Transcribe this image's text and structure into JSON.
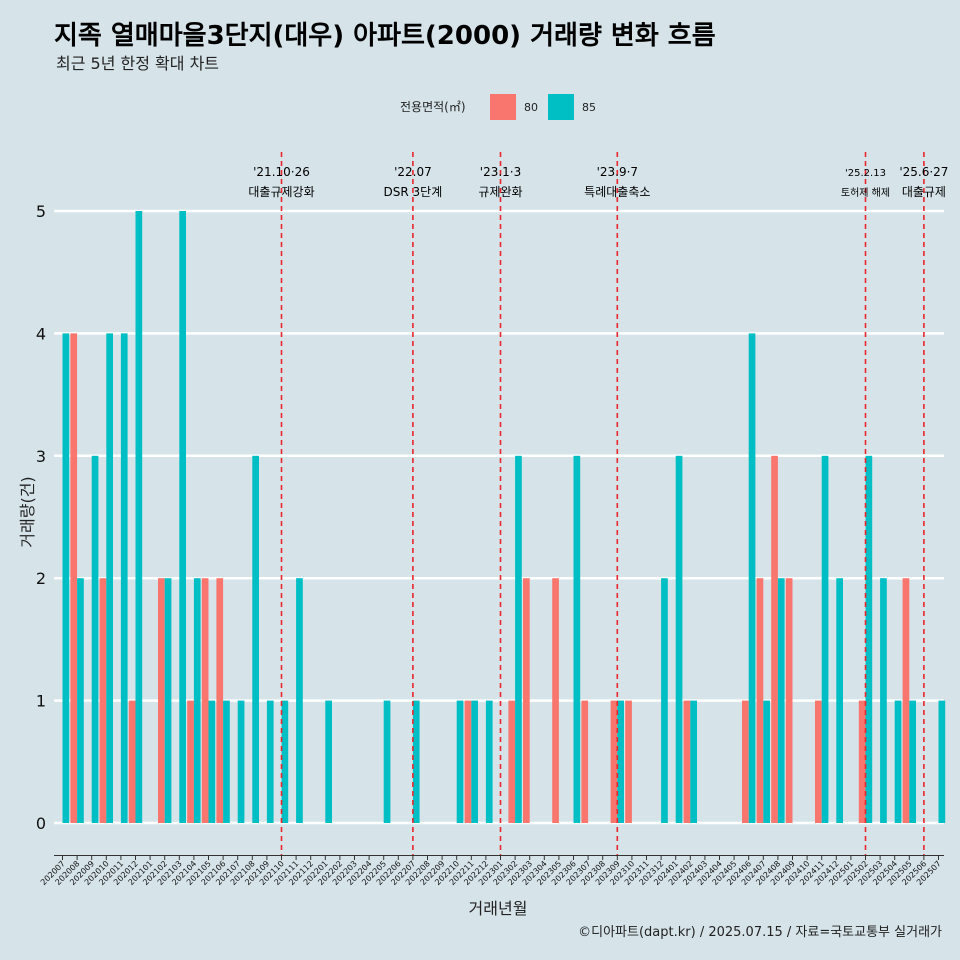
{
  "chart_data": {
    "type": "bar",
    "title": "지족 열매마을3단지(대우) 아파트(2000) 거래량 변화 흐름",
    "subtitle": "최근 5년 한정 확대 차트",
    "xlabel": "거래년월",
    "ylabel": "거래량(건)",
    "ylim": [
      0,
      5
    ],
    "yticks": [
      0,
      1,
      2,
      3,
      4,
      5
    ],
    "legend": {
      "title": "전용면적(㎡)",
      "position": "top",
      "entries": [
        {
          "name": "80",
          "color": "#f8766d"
        },
        {
          "name": "85",
          "color": "#00bfc4"
        }
      ]
    },
    "categories": [
      "202007",
      "202008",
      "202009",
      "202010",
      "202011",
      "202012",
      "202101",
      "202102",
      "202103",
      "202104",
      "202105",
      "202106",
      "202107",
      "202108",
      "202109",
      "202110",
      "202111",
      "202112",
      "202201",
      "202202",
      "202203",
      "202204",
      "202205",
      "202206",
      "202207",
      "202208",
      "202209",
      "202210",
      "202211",
      "202212",
      "202301",
      "202302",
      "202303",
      "202304",
      "202305",
      "202306",
      "202307",
      "202308",
      "202309",
      "202310",
      "202311",
      "202312",
      "202401",
      "202402",
      "202403",
      "202404",
      "202405",
      "202406",
      "202407",
      "202408",
      "202409",
      "202410",
      "202411",
      "202412",
      "202501",
      "202502",
      "202503",
      "202504",
      "202505",
      "202506",
      "202507"
    ],
    "series": [
      {
        "name": "80",
        "color": "#f8766d",
        "values": [
          0,
          4,
          0,
          2,
          0,
          1,
          0,
          2,
          0,
          1,
          2,
          2,
          0,
          0,
          0,
          0,
          0,
          0,
          0,
          0,
          0,
          0,
          0,
          0,
          0,
          0,
          0,
          0,
          1,
          0,
          0,
          1,
          2,
          0,
          2,
          0,
          1,
          0,
          1,
          1,
          0,
          0,
          0,
          1,
          0,
          0,
          0,
          1,
          2,
          3,
          2,
          0,
          1,
          0,
          0,
          1,
          0,
          0,
          2,
          0,
          0
        ]
      },
      {
        "name": "85",
        "color": "#00bfc4",
        "values": [
          4,
          2,
          3,
          4,
          4,
          5,
          0,
          2,
          5,
          2,
          1,
          1,
          1,
          3,
          1,
          1,
          2,
          0,
          1,
          0,
          0,
          0,
          1,
          0,
          1,
          0,
          0,
          1,
          1,
          1,
          0,
          3,
          0,
          0,
          0,
          3,
          0,
          0,
          1,
          0,
          0,
          2,
          3,
          1,
          0,
          0,
          0,
          4,
          1,
          2,
          0,
          0,
          3,
          2,
          0,
          3,
          2,
          1,
          1,
          0,
          1
        ]
      }
    ],
    "annotations": [
      {
        "date": "'21.10·26",
        "label": "대출규제강화",
        "category": "202110"
      },
      {
        "date": "'22.07",
        "label": "DSR 3단계",
        "category": "202207"
      },
      {
        "date": "'23.1·3",
        "label": "규제완화",
        "category": "202301"
      },
      {
        "date": "'23.9·7",
        "label": "특례대출축소",
        "category": "202309"
      },
      {
        "date": "'25.2.13",
        "label": "토허제 해제",
        "category": "202502"
      },
      {
        "date": "'25.6·27",
        "label": "대출규제",
        "category": "202506"
      }
    ],
    "caption": "©디아파트(dapt.kr) / 2025.07.15 / 자료=국토교통부 실거래가"
  }
}
